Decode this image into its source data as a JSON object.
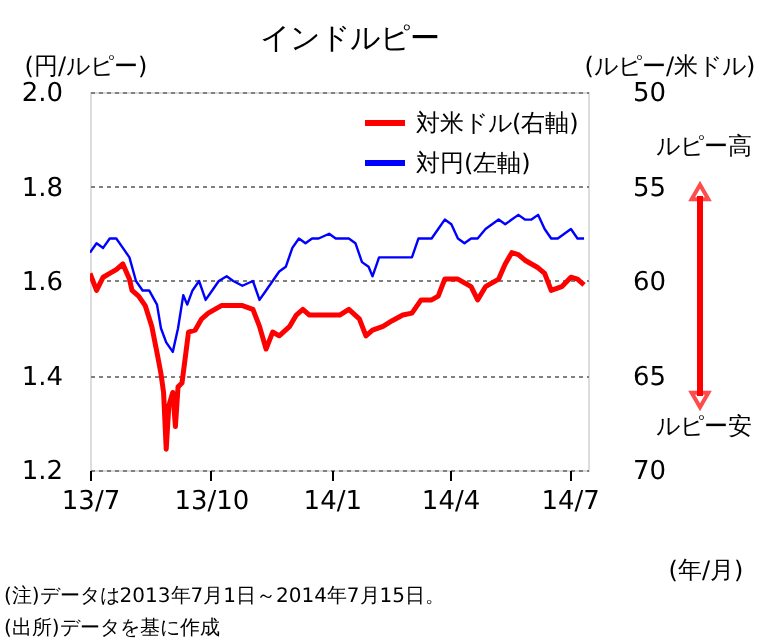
{
  "chart_data": {
    "type": "line",
    "title": "インドルピー",
    "xlabel": "(年/月)",
    "ylabel": "(円/ルピー)",
    "y2label": "(ルピー/米ドル)",
    "xlim": [
      "2013-07-01",
      "2014-07-15"
    ],
    "xticks": [
      {
        "value": "2013-07-01",
        "label": "13/7"
      },
      {
        "value": "2013-10-01",
        "label": "13/10"
      },
      {
        "value": "2014-01-01",
        "label": "14/1"
      },
      {
        "value": "2014-04-01",
        "label": "14/4"
      },
      {
        "value": "2014-07-01",
        "label": "14/7"
      }
    ],
    "ylim": [
      1.2,
      2.0
    ],
    "yticks": [
      1.2,
      1.4,
      1.6,
      1.8,
      {
        "value": 2,
        "label": "2.0"
      }
    ],
    "y2lim": [
      70,
      50
    ],
    "y2ticks": [
      50,
      55,
      60,
      65,
      70
    ],
    "grid": "y",
    "legend": "top right",
    "annotations": [
      "ルピー高",
      "ルピー安",
      "(注)データは2013年7月1日～2014年7月15日。",
      "(出所)データを基に作成"
    ],
    "series": [
      {
        "name": "対米ドル(右軸)",
        "color": "#ff0000",
        "axis": "y2",
        "x": [
          "2013-07-01",
          "2013-07-06",
          "2013-07-11",
          "2013-07-16",
          "2013-07-21",
          "2013-07-26",
          "2013-07-31",
          "2013-08-02",
          "2013-08-07",
          "2013-08-12",
          "2013-08-17",
          "2013-08-21",
          "2013-08-24",
          "2013-08-26",
          "2013-08-28",
          "2013-08-30",
          "2013-09-02",
          "2013-09-04",
          "2013-09-06",
          "2013-09-09",
          "2013-09-14",
          "2013-09-19",
          "2013-09-24",
          "2013-09-29",
          "2013-10-04",
          "2013-10-09",
          "2013-10-17",
          "2013-10-25",
          "2013-11-02",
          "2013-11-07",
          "2013-11-12",
          "2013-11-17",
          "2013-11-22",
          "2013-11-30",
          "2013-12-05",
          "2013-12-10",
          "2013-12-15",
          "2013-12-22",
          "2013-12-30",
          "2014-01-07",
          "2014-01-14",
          "2014-01-22",
          "2014-01-27",
          "2014-02-01",
          "2014-02-09",
          "2014-02-16",
          "2014-02-24",
          "2014-03-03",
          "2014-03-10",
          "2014-03-18",
          "2014-03-23",
          "2014-03-28",
          "2014-04-07",
          "2014-04-17",
          "2014-04-22",
          "2014-04-28",
          "2014-05-03",
          "2014-05-08",
          "2014-05-13",
          "2014-05-18",
          "2014-05-23",
          "2014-05-28",
          "2014-06-02",
          "2014-06-07",
          "2014-06-12",
          "2014-06-17",
          "2014-06-25",
          "2014-07-02",
          "2014-07-07",
          "2014-07-12"
        ],
        "values": [
          59.6,
          60.5,
          59.8,
          59.6,
          59.4,
          59.1,
          59.9,
          60.5,
          60.8,
          61.3,
          62.4,
          63.8,
          64.9,
          65.9,
          68.9,
          66.6,
          65.9,
          67.7,
          65.6,
          65.4,
          62.7,
          62.6,
          62.0,
          61.7,
          61.5,
          61.3,
          61.3,
          61.3,
          61.5,
          62.4,
          63.6,
          62.7,
          62.9,
          62.4,
          61.8,
          61.5,
          61.8,
          61.8,
          61.8,
          61.8,
          61.5,
          62.0,
          62.9,
          62.6,
          62.4,
          62.1,
          61.8,
          61.7,
          61.0,
          61.0,
          60.8,
          59.9,
          59.9,
          60.3,
          61.0,
          60.3,
          60.1,
          59.9,
          59.1,
          58.5,
          58.6,
          58.9,
          59.1,
          59.3,
          59.6,
          60.5,
          60.3,
          59.8,
          59.9,
          60.2
        ]
      },
      {
        "name": "対円(左軸)",
        "color": "#0000ff",
        "x": [
          "2013-07-01",
          "2013-07-06",
          "2013-07-11",
          "2013-07-16",
          "2013-07-21",
          "2013-07-26",
          "2013-07-31",
          "2013-08-05",
          "2013-08-10",
          "2013-08-15",
          "2013-08-21",
          "2013-08-24",
          "2013-08-28",
          "2013-09-02",
          "2013-09-06",
          "2013-09-10",
          "2013-09-13",
          "2013-09-17",
          "2013-09-22",
          "2013-09-27",
          "2013-10-02",
          "2013-10-07",
          "2013-10-13",
          "2013-10-18",
          "2013-10-25",
          "2013-11-02",
          "2013-11-07",
          "2013-11-12",
          "2013-11-17",
          "2013-11-22",
          "2013-11-27",
          "2013-12-02",
          "2013-12-07",
          "2013-12-12",
          "2013-12-17",
          "2013-12-22",
          "2013-12-30",
          "2014-01-04",
          "2014-01-09",
          "2014-01-14",
          "2014-01-19",
          "2014-01-24",
          "2014-01-29",
          "2014-02-01",
          "2014-02-06",
          "2014-02-11",
          "2014-02-16",
          "2014-02-21",
          "2014-02-26",
          "2014-03-03",
          "2014-03-08",
          "2014-03-13",
          "2014-03-18",
          "2014-03-23",
          "2014-03-28",
          "2014-04-02",
          "2014-04-07",
          "2014-04-12",
          "2014-04-17",
          "2014-04-22",
          "2014-04-28",
          "2014-05-03",
          "2014-05-08",
          "2014-05-13",
          "2014-05-18",
          "2014-05-23",
          "2014-05-28",
          "2014-06-02",
          "2014-06-07",
          "2014-06-12",
          "2014-06-17",
          "2014-06-22",
          "2014-06-27",
          "2014-07-02",
          "2014-07-07",
          "2014-07-12"
        ],
        "values": [
          1.66,
          1.68,
          1.67,
          1.69,
          1.69,
          1.67,
          1.65,
          1.6,
          1.58,
          1.58,
          1.55,
          1.5,
          1.47,
          1.45,
          1.5,
          1.57,
          1.55,
          1.58,
          1.6,
          1.56,
          1.58,
          1.6,
          1.61,
          1.6,
          1.59,
          1.6,
          1.56,
          1.58,
          1.6,
          1.62,
          1.63,
          1.67,
          1.69,
          1.68,
          1.69,
          1.69,
          1.7,
          1.69,
          1.69,
          1.69,
          1.68,
          1.64,
          1.63,
          1.61,
          1.65,
          1.65,
          1.65,
          1.65,
          1.65,
          1.65,
          1.69,
          1.69,
          1.69,
          1.71,
          1.73,
          1.72,
          1.69,
          1.68,
          1.69,
          1.69,
          1.71,
          1.72,
          1.73,
          1.72,
          1.73,
          1.74,
          1.73,
          1.73,
          1.74,
          1.71,
          1.69,
          1.69,
          1.7,
          1.71,
          1.69,
          1.69
        ]
      }
    ]
  }
}
